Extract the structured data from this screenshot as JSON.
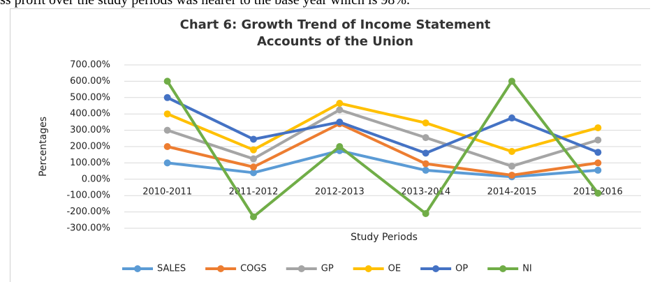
{
  "document": {
    "text": "ss profit over the study periods was nearer to the base year which is 98%."
  },
  "chart_data": {
    "type": "line",
    "title": "Chart 6: Growth Trend of Income Statement Accounts of the Union",
    "x_label": "Study Periods",
    "y_label": "Percentages",
    "categories": [
      "2010-2011",
      "2011-2012",
      "2012-2013",
      "2013-2014",
      "2014-2015",
      "2015-2016"
    ],
    "series": [
      {
        "name": "SALES",
        "color": "#5b9bd5",
        "values": [
          100,
          40,
          175,
          55,
          15,
          55
        ]
      },
      {
        "name": "COGS",
        "color": "#ed7d31",
        "values": [
          200,
          75,
          340,
          95,
          25,
          100
        ]
      },
      {
        "name": "GP",
        "color": "#a5a5a5",
        "values": [
          300,
          125,
          425,
          255,
          80,
          240
        ]
      },
      {
        "name": "OE",
        "color": "#ffc000",
        "values": [
          400,
          180,
          465,
          345,
          170,
          315
        ]
      },
      {
        "name": "OP",
        "color": "#4472c4",
        "values": [
          500,
          245,
          350,
          160,
          375,
          165
        ]
      },
      {
        "name": "NI",
        "color": "#70ad47",
        "values": [
          600,
          -230,
          200,
          -210,
          600,
          -85
        ]
      }
    ],
    "ylim": [
      -300,
      700
    ],
    "yticks": [
      {
        "value": -300,
        "label": "-300.00%"
      },
      {
        "value": -200,
        "label": "-200.00%"
      },
      {
        "value": -100,
        "label": "-100.00%"
      },
      {
        "value": 0,
        "label": "0.00%"
      },
      {
        "value": 100,
        "label": "100.00%"
      },
      {
        "value": 200,
        "label": "200.00%"
      },
      {
        "value": 300,
        "label": "300.00%"
      },
      {
        "value": 400,
        "label": "400.00%"
      },
      {
        "value": 500,
        "label": "500.00%"
      },
      {
        "value": 600,
        "label": "600.00%"
      },
      {
        "value": 700,
        "label": "700.00%"
      }
    ],
    "grid": true,
    "legend": "bottom"
  }
}
